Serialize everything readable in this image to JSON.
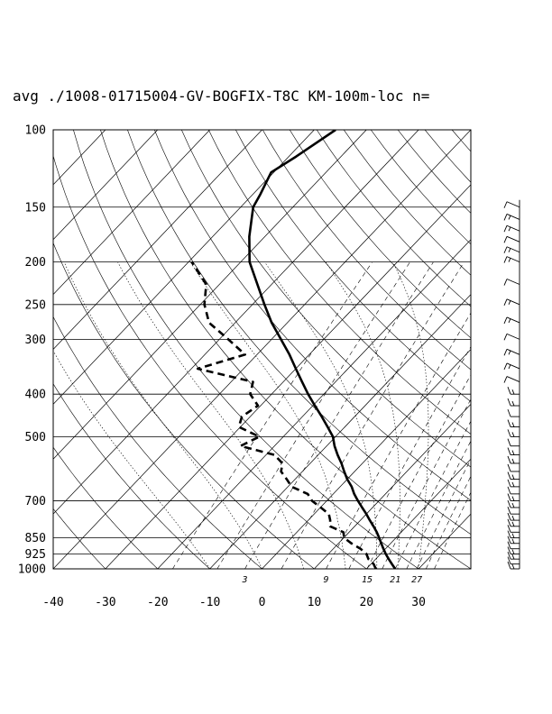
{
  "title": "avg ./1008-01715004-GV-BOGFIX-T8C KM-100m-loc n=",
  "chart_data": {
    "type": "skew-t log-p diagram",
    "pressure_ticks": [
      "100",
      "150",
      "200",
      "250",
      "300",
      "400",
      "500",
      "700",
      "850",
      "925",
      "1000"
    ],
    "temperature_ticks": [
      "-40",
      "-30",
      "-20",
      "-10",
      "0",
      "10",
      "20",
      "30"
    ],
    "mixing_ratio_labels": [
      "3",
      "9",
      "15",
      "21",
      "27"
    ],
    "xlim": [
      -40,
      40
    ],
    "ylim_hpa": [
      1000,
      100
    ],
    "y_scale": "log",
    "skew_deg_per_decade": 80,
    "temperature_profile": {
      "style": "solid-thick",
      "p": [
        1000,
        975,
        950,
        925,
        900,
        875,
        850,
        825,
        800,
        775,
        750,
        725,
        700,
        675,
        650,
        625,
        600,
        575,
        550,
        525,
        500,
        475,
        450,
        425,
        400,
        375,
        350,
        325,
        300,
        275,
        250,
        225,
        200,
        175,
        150,
        140,
        125,
        115,
        100
      ],
      "t": [
        25.5,
        24.0,
        22.5,
        21.0,
        19.6,
        18.2,
        16.8,
        15.3,
        13.6,
        11.8,
        10.0,
        8.0,
        6.0,
        4.0,
        2.2,
        0.0,
        -2.0,
        -4.0,
        -6.3,
        -8.5,
        -10.5,
        -13.3,
        -16.3,
        -19.6,
        -23.0,
        -26.4,
        -30.0,
        -33.8,
        -38.2,
        -43.0,
        -47.7,
        -52.7,
        -58.3,
        -63.0,
        -67.6,
        -68.6,
        -70.5,
        -68.6,
        -65.9
      ]
    },
    "dewpoint_profile": {
      "style": "dashed-thick",
      "p": [
        1000,
        975,
        950,
        925,
        900,
        875,
        850,
        825,
        800,
        775,
        750,
        725,
        700,
        675,
        650,
        625,
        600,
        575,
        550,
        525,
        500,
        475,
        450,
        425,
        400,
        375,
        350,
        325,
        300,
        275,
        250,
        225,
        200
      ],
      "t": [
        21.8,
        20.5,
        18.6,
        17.3,
        15.2,
        12.5,
        10.1,
        8.9,
        5.3,
        4.2,
        2.8,
        0.1,
        -2.8,
        -4.9,
        -9.3,
        -11.6,
        -14.1,
        -15.3,
        -18.4,
        -26.5,
        -24.6,
        -30.3,
        -31.6,
        -30.5,
        -34.1,
        -35.8,
        -48.8,
        -42.3,
        -48.3,
        -55.0,
        -59.2,
        -62.5,
        -69.4
      ]
    },
    "wind_barb_pressures": [
      1000,
      975,
      950,
      925,
      900,
      875,
      850,
      825,
      800,
      775,
      750,
      725,
      700,
      675,
      650,
      625,
      600,
      575,
      550,
      525,
      500,
      475,
      450,
      425,
      400,
      375,
      350,
      325,
      300,
      275,
      250,
      225,
      200,
      190,
      180,
      170,
      160,
      150
    ],
    "grid": true,
    "legend": "none"
  }
}
